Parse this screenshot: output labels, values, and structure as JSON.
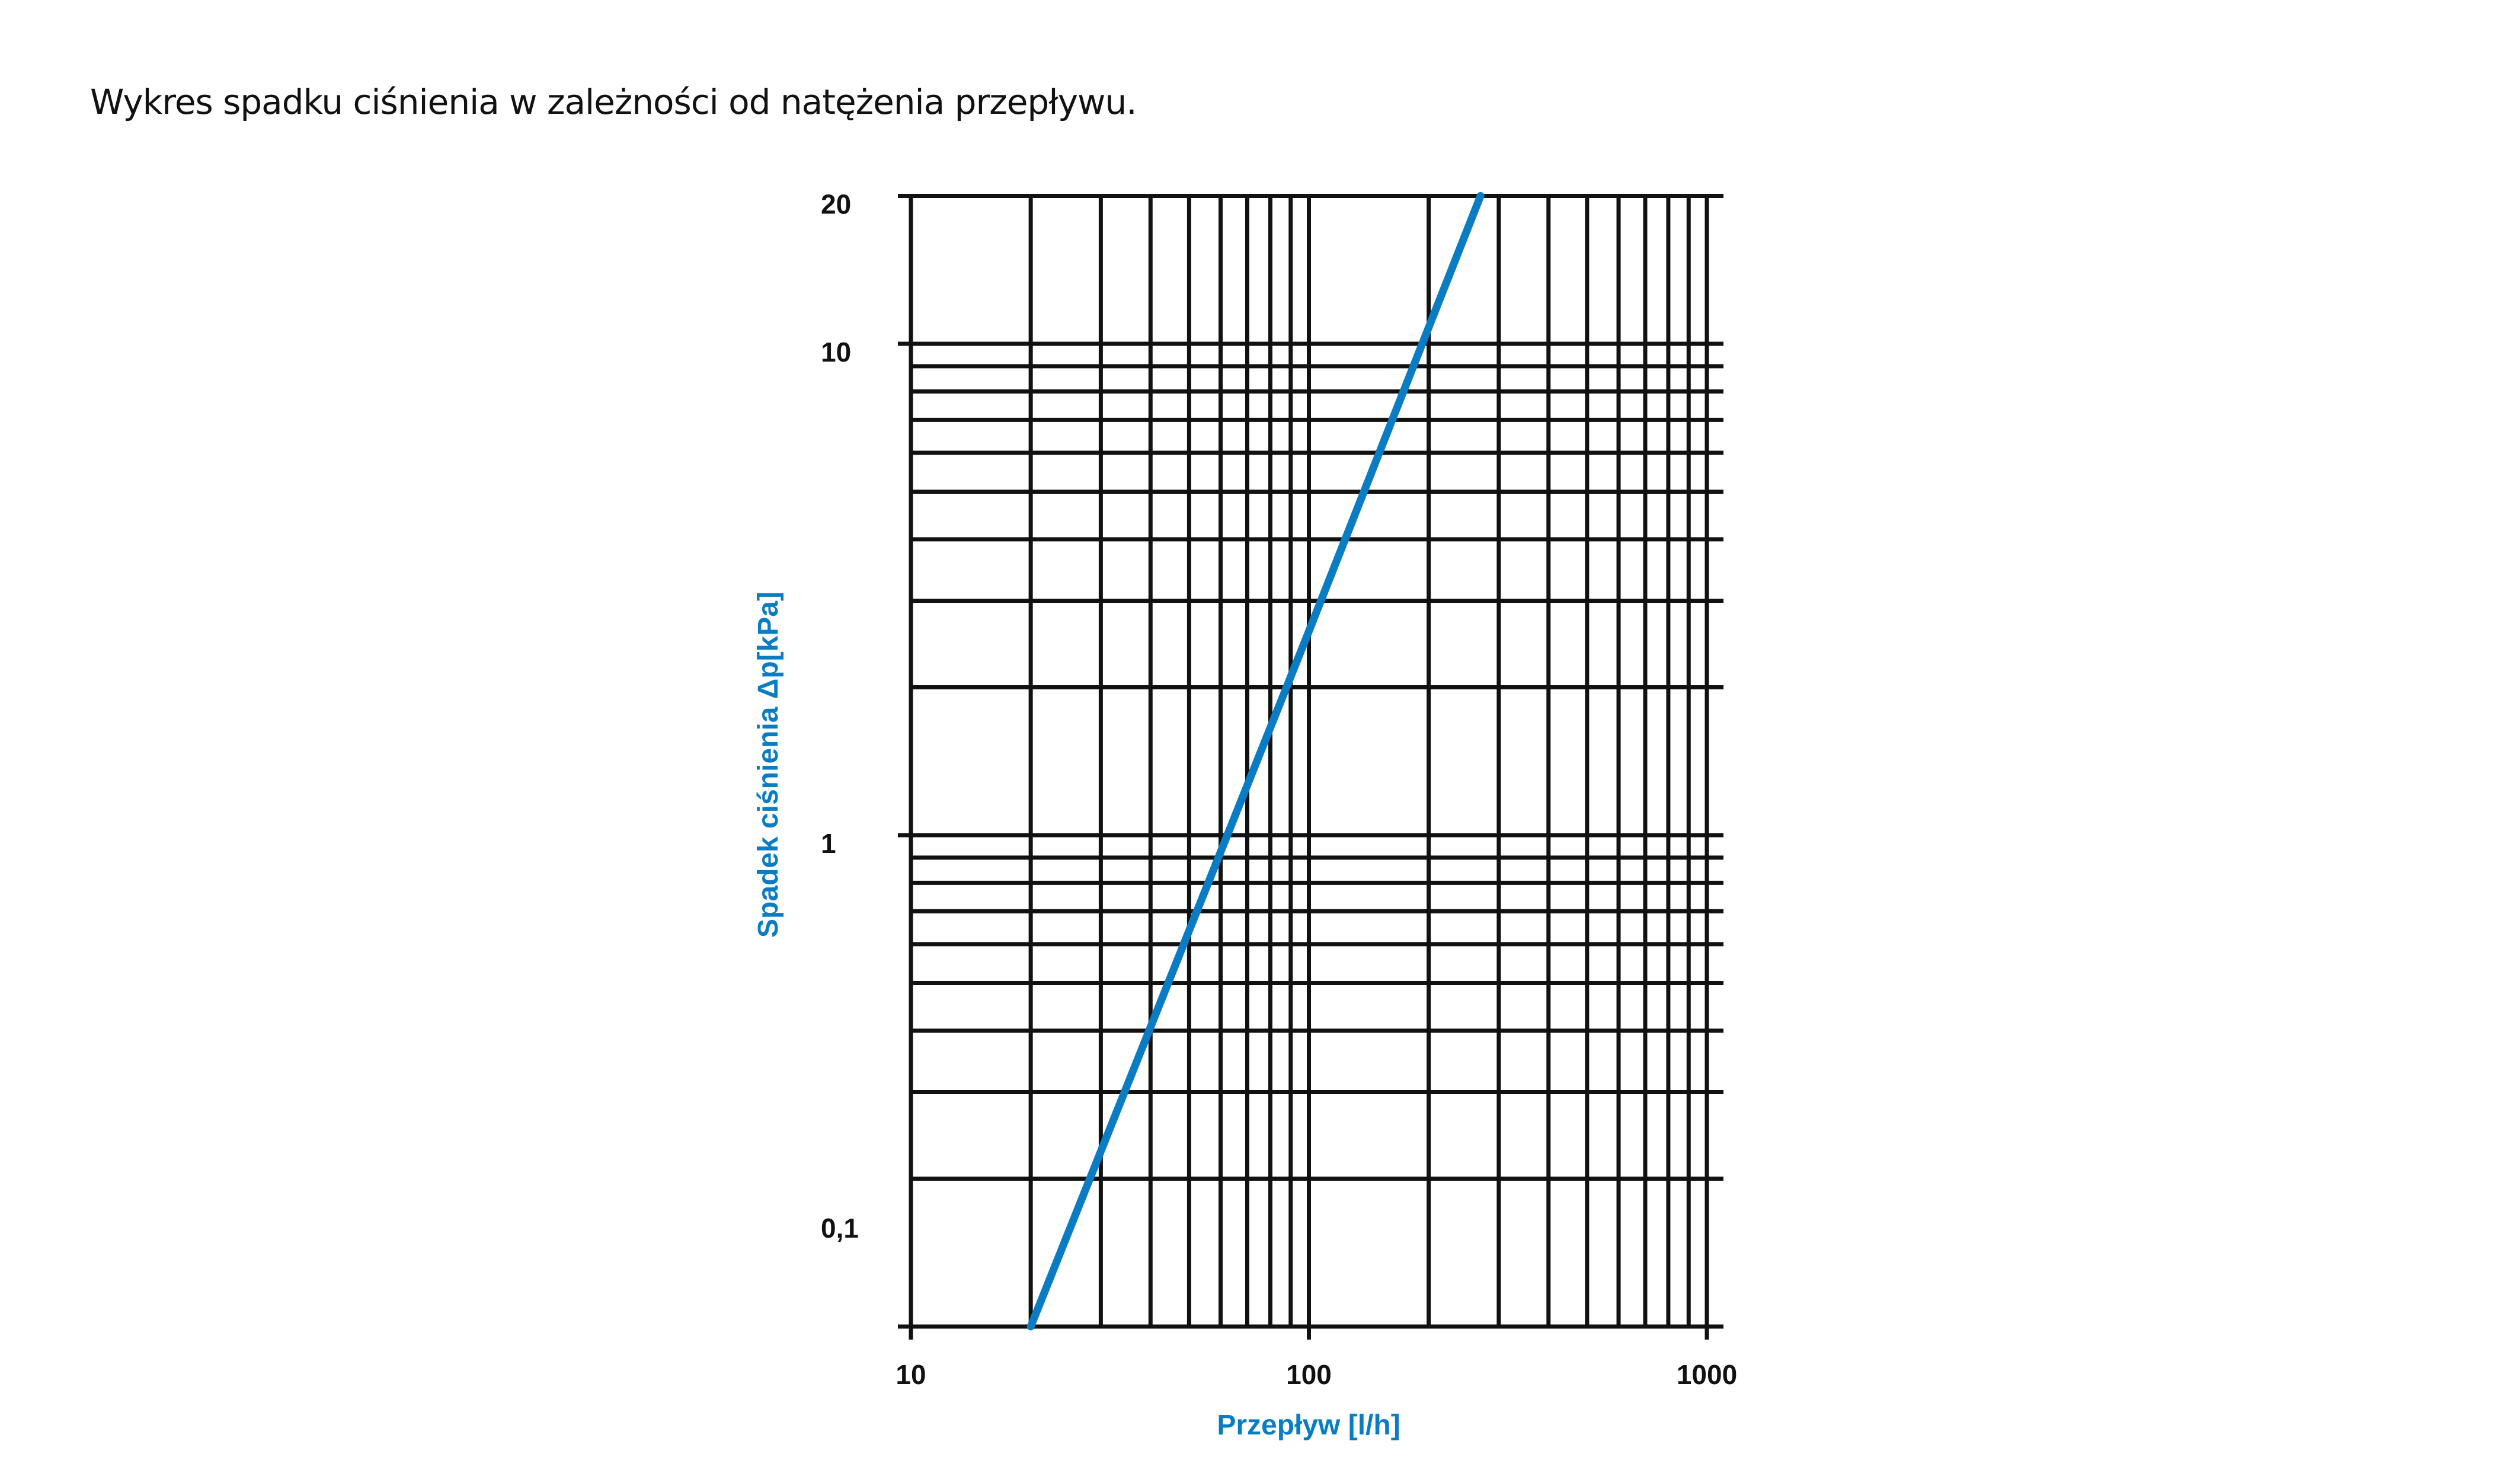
{
  "title": "Wykres spadku ciśnienia w zależności od natężenia przepływu.",
  "chart_data": {
    "type": "line",
    "title": "",
    "xlabel": "Przepływ [l/h]",
    "ylabel": "Spadek ciśnienia Δp[kPa]",
    "x_scale": "log",
    "y_scale": "log",
    "xlim": [
      10,
      1000
    ],
    "ylim": [
      0.1,
      20
    ],
    "x_ticks": [
      {
        "value": 10,
        "label": "10"
      },
      {
        "value": 100,
        "label": "100"
      },
      {
        "value": 1000,
        "label": "1000"
      }
    ],
    "y_ticks": [
      {
        "value": 0.1,
        "label": "0,1"
      },
      {
        "value": 1,
        "label": "1"
      },
      {
        "value": 10,
        "label": "10"
      },
      {
        "value": 20,
        "label": "20"
      }
    ],
    "grid": true,
    "series": [
      {
        "x": [
          20,
          100,
          270
        ],
        "y": [
          0.1,
          2.6,
          20
        ],
        "color": "#0a7cc4"
      }
    ],
    "label_color": "#0a7cc4"
  }
}
